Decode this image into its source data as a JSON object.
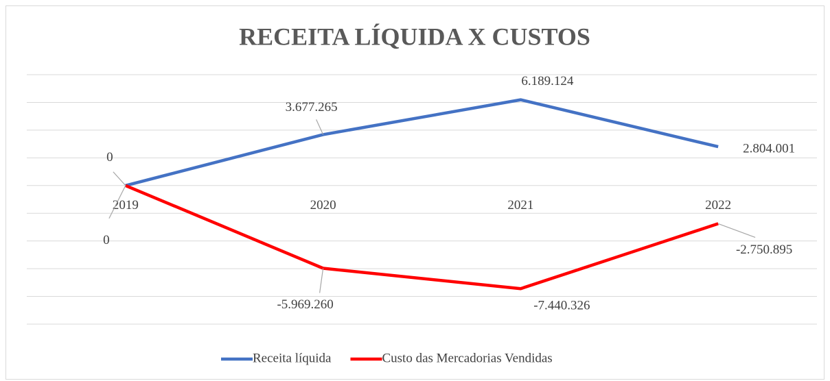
{
  "chart_data": {
    "type": "line",
    "title": "RECEITA LÍQUIDA X CUSTOS",
    "categories": [
      "2019",
      "2020",
      "2021",
      "2022"
    ],
    "series": [
      {
        "name": "Receita líquida",
        "color": "#4472c4",
        "values": [
          0,
          3677265,
          6189124,
          2804001
        ],
        "value_labels": [
          "0",
          "3.677.265",
          "6.189.124",
          "2.804.001"
        ]
      },
      {
        "name": "Custo das Mercadorias Vendidas",
        "color": "#ff0000",
        "values": [
          0,
          -5969260,
          -7440326,
          -2750895
        ],
        "value_labels": [
          "0",
          "-5.969.260",
          "-7.440.326",
          "-2.750.895"
        ]
      }
    ],
    "ylim": [
      -10000000,
      8000000
    ],
    "yticks": [
      -10000000,
      -8000000,
      -6000000,
      -4000000,
      -2000000,
      0,
      2000000,
      4000000,
      6000000,
      8000000
    ],
    "grid": true,
    "legend": "bottom"
  }
}
